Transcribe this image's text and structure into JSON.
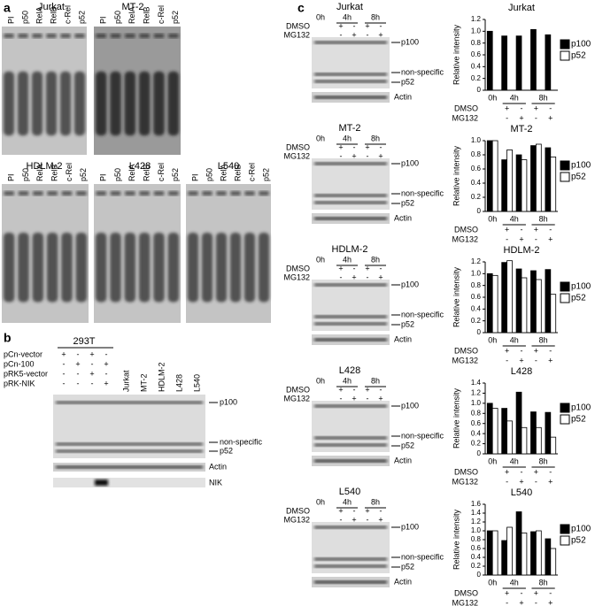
{
  "panel_labels": [
    "a",
    "b",
    "c"
  ],
  "emsa": [
    {
      "title": "Jurkat",
      "lanes": [
        "PI",
        "p50",
        "RelA",
        "RelB",
        "c-Rel",
        "p52"
      ]
    },
    {
      "title": "MT-2",
      "lanes": [
        "PI",
        "p50",
        "RelA",
        "RelB",
        "c-Rel",
        "p52"
      ]
    },
    {
      "title": "HDLM-2",
      "lanes": [
        "PI",
        "p50",
        "RelA",
        "RelB",
        "c-Rel",
        "p52"
      ]
    },
    {
      "title": "L428",
      "lanes": [
        "PI",
        "p50",
        "RelA",
        "RelB",
        "c-Rel",
        "p52"
      ]
    },
    {
      "title": "L540",
      "lanes": [
        "PI",
        "p50",
        "RelA",
        "RelB",
        "c-Rel",
        "p52"
      ]
    }
  ],
  "western": {
    "title": "293T",
    "rows": [
      {
        "label": "pCn-vector",
        "marks": [
          "+",
          "-",
          "+",
          "-"
        ]
      },
      {
        "label": "pCn-100",
        "marks": [
          "-",
          "+",
          "-",
          "+"
        ]
      },
      {
        "label": "pRK5-vector",
        "marks": [
          "-",
          "-",
          "+",
          "-"
        ]
      },
      {
        "label": "pRK-NIK",
        "marks": [
          "-",
          "-",
          "-",
          "+"
        ]
      }
    ],
    "lanes": [
      "Jurkat",
      "MT-2",
      "HDLM-2",
      "L428",
      "L540"
    ],
    "bands": [
      "p100",
      "non-specific",
      "p52"
    ],
    "strips": [
      "Actin",
      "NIK"
    ]
  },
  "blots": [
    {
      "title": "Jurkat",
      "times": [
        "0h",
        "4h",
        "8h"
      ],
      "rows": [
        {
          "label": "DMSO",
          "marks": [
            "+",
            "-",
            "+",
            "-"
          ]
        },
        {
          "label": "MG132",
          "marks": [
            "-",
            "+",
            "-",
            "+"
          ]
        }
      ],
      "bands": [
        "p100",
        "non-specific",
        "p52"
      ],
      "strip": "Actin"
    },
    {
      "title": "MT-2",
      "times": [
        "0h",
        "4h",
        "8h"
      ],
      "rows": [
        {
          "label": "DMSO",
          "marks": [
            "+",
            "-",
            "+",
            "-"
          ]
        },
        {
          "label": "MG132",
          "marks": [
            "-",
            "+",
            "-",
            "+"
          ]
        }
      ],
      "bands": [
        "p100",
        "non-specific",
        "p52"
      ],
      "strip": "Actin"
    },
    {
      "title": "HDLM-2",
      "times": [
        "0h",
        "4h",
        "8h"
      ],
      "rows": [
        {
          "label": "DMSO",
          "marks": [
            "+",
            "-",
            "+",
            "-"
          ]
        },
        {
          "label": "MG132",
          "marks": [
            "-",
            "+",
            "-",
            "+"
          ]
        }
      ],
      "bands": [
        "p100",
        "non-specific",
        "p52"
      ],
      "strip": "Actin"
    },
    {
      "title": "L428",
      "times": [
        "0h",
        "4h",
        "8h"
      ],
      "rows": [
        {
          "label": "DMSO",
          "marks": [
            "+",
            "-",
            "+",
            "-"
          ]
        },
        {
          "label": "MG132",
          "marks": [
            "-",
            "+",
            "-",
            "+"
          ]
        }
      ],
      "bands": [
        "p100",
        "non-specific",
        "p52"
      ],
      "strip": "Actin"
    },
    {
      "title": "L540",
      "times": [
        "0h",
        "4h",
        "8h"
      ],
      "rows": [
        {
          "label": "DMSO",
          "marks": [
            "+",
            "-",
            "+",
            "-"
          ]
        },
        {
          "label": "MG132",
          "marks": [
            "-",
            "+",
            "-",
            "+"
          ]
        }
      ],
      "bands": [
        "p100",
        "non-specific",
        "p52"
      ],
      "strip": "Actin"
    }
  ],
  "chart_data": [
    {
      "type": "bar",
      "title": "Jurkat",
      "y_label": "Relative intensity",
      "categories": [
        "0h",
        null,
        null,
        null,
        null
      ],
      "group_labels": [
        "4h",
        "8h"
      ],
      "treatments": [
        {
          "name": "DMSO",
          "marks": [
            "+",
            "-",
            "+",
            "-"
          ]
        },
        {
          "name": "MG132",
          "marks": [
            "-",
            "+",
            "-",
            "+"
          ]
        }
      ],
      "series": [
        {
          "name": "p100",
          "color": "#000000",
          "values": [
            1.0,
            0.92,
            0.92,
            1.03,
            0.94
          ]
        },
        {
          "name": "p52",
          "color": "#ffffff",
          "values": [
            null,
            null,
            null,
            null,
            null
          ]
        }
      ],
      "ylim": [
        0,
        1.2
      ],
      "yticks": [
        0,
        0.2,
        0.4,
        0.6,
        0.8,
        {
          "value": 1,
          "label": "1.0"
        },
        1.2
      ]
    },
    {
      "type": "bar",
      "title": "MT-2",
      "y_label": "Relative intensity",
      "categories": [
        "0h",
        null,
        null,
        null,
        null
      ],
      "group_labels": [
        "4h",
        "8h"
      ],
      "treatments": [
        {
          "name": "DMSO",
          "marks": [
            "+",
            "-",
            "+",
            "-"
          ]
        },
        {
          "name": "MG132",
          "marks": [
            "-",
            "+",
            "-",
            "+"
          ]
        }
      ],
      "series": [
        {
          "name": "p100",
          "color": "#000000",
          "values": [
            1.0,
            0.73,
            0.8,
            0.93,
            0.9
          ]
        },
        {
          "name": "p52",
          "color": "#ffffff",
          "values": [
            1.0,
            0.87,
            0.73,
            0.95,
            0.77
          ]
        }
      ],
      "ylim": [
        0,
        1
      ],
      "yticks": [
        0,
        0.2,
        0.4,
        0.6,
        0.8,
        {
          "value": 1,
          "label": "1.0"
        }
      ]
    },
    {
      "type": "bar",
      "title": "HDLM-2",
      "y_label": "Relative intensity",
      "categories": [
        "0h",
        null,
        null,
        null,
        null
      ],
      "group_labels": [
        "4h",
        "8h"
      ],
      "treatments": [
        {
          "name": "DMSO",
          "marks": [
            "+",
            "-",
            "+",
            "-"
          ]
        },
        {
          "name": "MG132",
          "marks": [
            "-",
            "+",
            "-",
            "+"
          ]
        }
      ],
      "series": [
        {
          "name": "p100",
          "color": "#000000",
          "values": [
            1.0,
            1.19,
            1.08,
            1.05,
            1.07
          ]
        },
        {
          "name": "p52",
          "color": "#ffffff",
          "values": [
            0.97,
            1.22,
            0.93,
            0.9,
            0.65
          ]
        }
      ],
      "ylim": [
        0,
        1.2
      ],
      "yticks": [
        0,
        0.2,
        0.4,
        0.6,
        0.8,
        {
          "value": 1,
          "label": "1.0"
        },
        1.2
      ]
    },
    {
      "type": "bar",
      "title": "L428",
      "y_label": "Relative intensity",
      "categories": [
        "0h",
        null,
        null,
        null,
        null
      ],
      "group_labels": [
        "4h",
        "8h"
      ],
      "treatments": [
        {
          "name": "DMSO",
          "marks": [
            "+",
            "-",
            "+",
            "-"
          ]
        },
        {
          "name": "MG132",
          "marks": [
            "-",
            "+",
            "-",
            "+"
          ]
        }
      ],
      "series": [
        {
          "name": "p100",
          "color": "#000000",
          "values": [
            1.0,
            0.9,
            1.22,
            0.83,
            0.82
          ]
        },
        {
          "name": "p52",
          "color": "#ffffff",
          "values": [
            0.9,
            0.65,
            0.52,
            0.52,
            0.33
          ]
        }
      ],
      "ylim": [
        0,
        1.4
      ],
      "yticks": [
        0,
        0.2,
        0.4,
        0.6,
        0.8,
        {
          "value": 1,
          "label": "1.0"
        },
        1.2,
        1.4
      ]
    },
    {
      "type": "bar",
      "title": "L540",
      "y_label": "Relative intensity",
      "categories": [
        "0h",
        null,
        null,
        null,
        null
      ],
      "group_labels": [
        "4h",
        "8h"
      ],
      "treatments": [
        {
          "name": "DMSO",
          "marks": [
            "+",
            "-",
            "+",
            "-"
          ]
        },
        {
          "name": "MG132",
          "marks": [
            "-",
            "+",
            "-",
            "+"
          ]
        }
      ],
      "series": [
        {
          "name": "p100",
          "color": "#000000",
          "values": [
            1.0,
            0.78,
            1.43,
            0.98,
            0.82
          ]
        },
        {
          "name": "p52",
          "color": "#ffffff",
          "values": [
            1.0,
            1.08,
            0.95,
            1.0,
            0.6
          ]
        }
      ],
      "ylim": [
        0,
        1.6
      ],
      "yticks": [
        0,
        0.2,
        0.4,
        0.6,
        0.8,
        {
          "value": 1,
          "label": "1.0"
        },
        1.2,
        1.4,
        1.6
      ]
    }
  ]
}
